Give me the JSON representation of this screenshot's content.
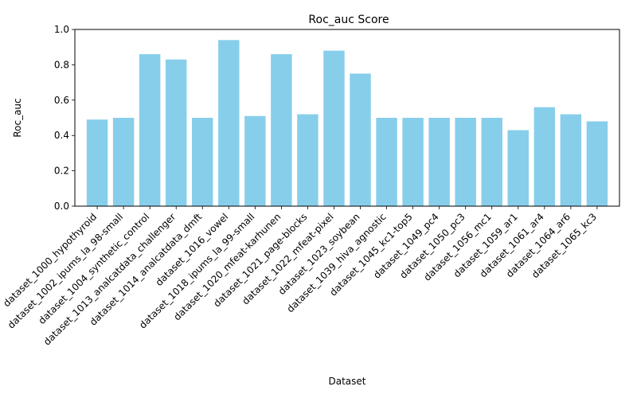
{
  "chart_data": {
    "type": "bar",
    "title": "Roc_auc Score",
    "xlabel": "Dataset",
    "ylabel": "Roc_auc",
    "ylim": [
      0,
      1.0
    ],
    "yticks": [
      "0.0",
      "0.2",
      "0.4",
      "0.6",
      "0.8",
      "1.0"
    ],
    "grid": false,
    "bar_color": "#87CEEB",
    "categories": [
      "dataset_1000_hypothyroid",
      "dataset_1002_ipums_la_98-small",
      "dataset_1004_synthetic_control",
      "dataset_1013_analcatdata_challenger",
      "dataset_1014_analcatdata_dmft",
      "dataset_1016_vowel",
      "dataset_1018_ipums_la_99-small",
      "dataset_1020_mfeat-karhunen",
      "dataset_1021_page-blocks",
      "dataset_1022_mfeat-pixel",
      "dataset_1023_soybean",
      "dataset_1039_hiva_agnostic",
      "dataset_1045_kc1-top5",
      "dataset_1049_pc4",
      "dataset_1050_pc3",
      "dataset_1056_mc1",
      "dataset_1059_ar1",
      "dataset_1061_ar4",
      "dataset_1064_ar6",
      "dataset_1065_kc3"
    ],
    "values": [
      0.49,
      0.5,
      0.86,
      0.83,
      0.5,
      0.94,
      0.51,
      0.86,
      0.52,
      0.88,
      0.75,
      0.5,
      0.5,
      0.5,
      0.5,
      0.5,
      0.43,
      0.56,
      0.52,
      0.48
    ]
  }
}
